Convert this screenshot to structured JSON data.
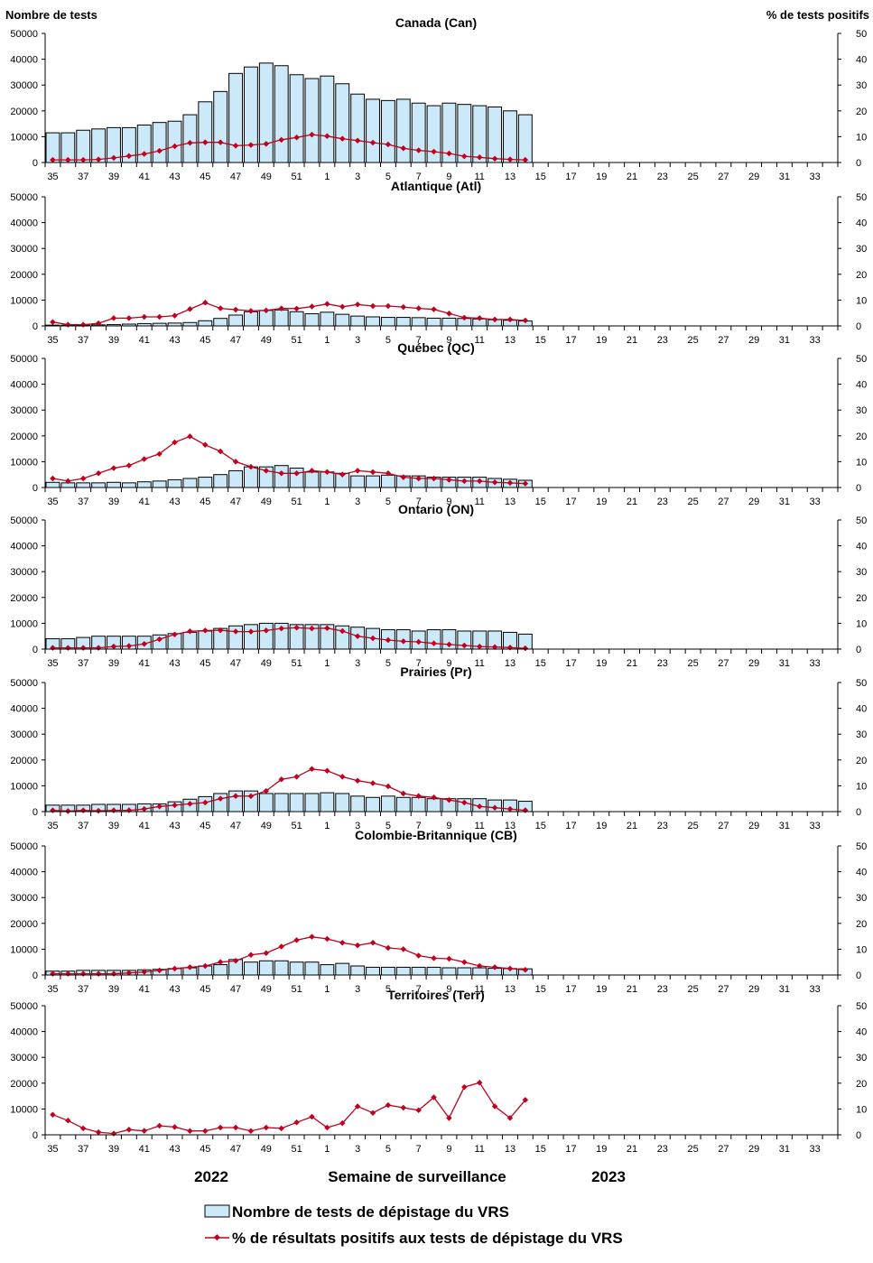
{
  "axis_titles": {
    "left": "Nombre de tests",
    "right": "% de tests positifs"
  },
  "footer": {
    "year_left": "2022",
    "xlabel": "Semaine de surveillance",
    "year_right": "2023"
  },
  "legend": {
    "bars": "Nombre de tests de dépistage du VRS",
    "line": "% de résultats positifs aux tests de dépistage du VRS"
  },
  "colors": {
    "bar_fill": "#cce9f9",
    "bar_stroke": "#000000",
    "line": "#c0001c"
  },
  "x_tick_labels": [
    "35",
    "37",
    "39",
    "41",
    "43",
    "45",
    "47",
    "49",
    "51",
    "1",
    "3",
    "5",
    "7",
    "9",
    "11",
    "13",
    "15",
    "17",
    "19",
    "21",
    "23",
    "25",
    "27",
    "29",
    "31",
    "33"
  ],
  "chart_data": [
    {
      "type": "bar",
      "title": "Canada (Can)",
      "weeks": [
        35,
        36,
        37,
        38,
        39,
        40,
        41,
        42,
        43,
        44,
        45,
        46,
        47,
        48,
        49,
        50,
        51,
        52,
        1,
        2,
        3,
        4,
        5,
        6,
        7,
        8,
        9,
        10,
        11,
        12,
        13,
        14
      ],
      "series": [
        {
          "name": "Nombre de tests de dépistage du VRS",
          "axis": "left",
          "values": [
            11500,
            11500,
            12500,
            13000,
            13500,
            13500,
            14500,
            15500,
            16000,
            18500,
            23500,
            27500,
            34500,
            37000,
            38500,
            37500,
            34000,
            32500,
            33500,
            30500,
            26500,
            24500,
            24000,
            24500,
            23000,
            22000,
            23000,
            22500,
            22000,
            21500,
            20000,
            18500
          ]
        },
        {
          "name": "% de résultats positifs aux tests de dépistage du VRS",
          "axis": "right",
          "values": [
            1.0,
            1.0,
            1.0,
            1.2,
            1.8,
            2.5,
            3.3,
            4.5,
            6.3,
            7.6,
            7.8,
            7.8,
            6.5,
            6.8,
            7.2,
            8.8,
            9.7,
            10.8,
            10.2,
            9.2,
            8.5,
            7.7,
            7.0,
            5.5,
            4.7,
            4.2,
            3.5,
            2.4,
            2.0,
            1.5,
            1.2,
            1.0
          ]
        }
      ],
      "ylim_left": [
        0,
        50000
      ],
      "ylim_right": [
        0,
        50
      ]
    },
    {
      "type": "bar",
      "title": "Atlantique (Atl)",
      "weeks": [
        35,
        36,
        37,
        38,
        39,
        40,
        41,
        42,
        43,
        44,
        45,
        46,
        47,
        48,
        49,
        50,
        51,
        52,
        1,
        2,
        3,
        4,
        5,
        6,
        7,
        8,
        9,
        10,
        11,
        12,
        13,
        14
      ],
      "series": [
        {
          "name": "Nombre de tests de dépistage du VRS",
          "axis": "left",
          "values": [
            300,
            300,
            300,
            400,
            500,
            700,
            900,
            1000,
            1100,
            1300,
            2000,
            2900,
            4200,
            5500,
            6000,
            6200,
            5500,
            4700,
            5300,
            4500,
            3800,
            3500,
            3300,
            3300,
            3200,
            3000,
            3000,
            2900,
            2700,
            2400,
            2200,
            1900
          ]
        },
        {
          "name": "% de résultats positifs aux tests de dépistage du VRS",
          "axis": "right",
          "values": [
            1.5,
            0.5,
            0.5,
            1.0,
            3.0,
            3.0,
            3.5,
            3.5,
            4.0,
            6.5,
            9.0,
            6.8,
            6.3,
            5.8,
            6.0,
            6.8,
            6.7,
            7.5,
            8.5,
            7.4,
            8.3,
            7.7,
            7.7,
            7.3,
            6.8,
            6.4,
            4.8,
            3.2,
            3.0,
            2.5,
            2.5,
            2.1
          ]
        }
      ],
      "ylim_left": [
        0,
        50000
      ],
      "ylim_right": [
        0,
        50
      ]
    },
    {
      "type": "bar",
      "title": "Québec (QC)",
      "weeks": [
        35,
        36,
        37,
        38,
        39,
        40,
        41,
        42,
        43,
        44,
        45,
        46,
        47,
        48,
        49,
        50,
        51,
        52,
        1,
        2,
        3,
        4,
        5,
        6,
        7,
        8,
        9,
        10,
        11,
        12,
        13,
        14
      ],
      "series": [
        {
          "name": "Nombre de tests de dépistage du VRS",
          "axis": "left",
          "values": [
            2000,
            1800,
            1800,
            1800,
            2000,
            1800,
            2200,
            2500,
            3000,
            3500,
            4000,
            5000,
            6500,
            8000,
            8000,
            8500,
            7500,
            6000,
            6000,
            5500,
            4500,
            4500,
            4800,
            4500,
            4500,
            4000,
            4000,
            4000,
            4000,
            3500,
            3200,
            2800
          ]
        },
        {
          "name": "% de résultats positifs aux tests de dépistage du VRS",
          "axis": "right",
          "values": [
            3.5,
            2.5,
            3.5,
            5.5,
            7.5,
            8.5,
            11.0,
            13.0,
            17.5,
            19.8,
            16.5,
            14.0,
            10.0,
            8.0,
            6.5,
            5.5,
            5.5,
            6.5,
            6.0,
            5.0,
            6.5,
            6.0,
            5.5,
            4.0,
            3.5,
            3.5,
            3.0,
            2.5,
            2.5,
            2.0,
            1.8,
            1.5
          ]
        }
      ],
      "ylim_left": [
        0,
        50000
      ],
      "ylim_right": [
        0,
        50
      ]
    },
    {
      "type": "bar",
      "title": "Ontario (ON)",
      "weeks": [
        35,
        36,
        37,
        38,
        39,
        40,
        41,
        42,
        43,
        44,
        45,
        46,
        47,
        48,
        49,
        50,
        51,
        52,
        1,
        2,
        3,
        4,
        5,
        6,
        7,
        8,
        9,
        10,
        11,
        12,
        13,
        14
      ],
      "series": [
        {
          "name": "Nombre de tests de dépistage du VRS",
          "axis": "left",
          "values": [
            4000,
            4000,
            4500,
            5000,
            5000,
            5000,
            5000,
            5500,
            6000,
            6500,
            7000,
            8000,
            9000,
            9500,
            10000,
            10000,
            9500,
            9500,
            9500,
            9000,
            8500,
            8000,
            7500,
            7500,
            7000,
            7500,
            7500,
            7000,
            7000,
            7000,
            6500,
            5800
          ]
        },
        {
          "name": "% de résultats positifs aux tests de dépistage du VRS",
          "axis": "right",
          "values": [
            0.5,
            0.5,
            0.5,
            0.5,
            1.0,
            1.2,
            2.0,
            3.8,
            5.7,
            6.9,
            7.2,
            7.3,
            6.8,
            6.8,
            7.2,
            8.0,
            8.3,
            8.0,
            8.1,
            7.0,
            5.0,
            4.2,
            3.5,
            3.0,
            2.8,
            2.2,
            1.8,
            1.4,
            1.0,
            0.8,
            0.6,
            0.3
          ]
        }
      ],
      "ylim_left": [
        0,
        50000
      ],
      "ylim_right": [
        0,
        50
      ]
    },
    {
      "type": "bar",
      "title": "Prairies (Pr)",
      "weeks": [
        35,
        36,
        37,
        38,
        39,
        40,
        41,
        42,
        43,
        44,
        45,
        46,
        47,
        48,
        49,
        50,
        51,
        52,
        1,
        2,
        3,
        4,
        5,
        6,
        7,
        8,
        9,
        10,
        11,
        12,
        13,
        14
      ],
      "series": [
        {
          "name": "Nombre de tests de dépistage du VRS",
          "axis": "left",
          "values": [
            2500,
            2500,
            2500,
            2800,
            2800,
            2800,
            3000,
            3000,
            3800,
            4800,
            5800,
            7000,
            8000,
            8000,
            7000,
            7000,
            7000,
            7000,
            7300,
            7000,
            6000,
            5500,
            6000,
            5500,
            5500,
            5000,
            5000,
            5000,
            5000,
            4500,
            4500,
            4000
          ]
        },
        {
          "name": "% de résultats positifs aux tests de dépistage du VRS",
          "axis": "right",
          "values": [
            0.5,
            0.2,
            0.5,
            0.3,
            0.5,
            0.5,
            1.0,
            2.0,
            2.5,
            3.0,
            3.5,
            5.0,
            6.0,
            6.0,
            8.0,
            12.5,
            13.5,
            16.5,
            15.8,
            13.5,
            12.0,
            11.0,
            9.8,
            7.0,
            6.0,
            5.5,
            4.5,
            3.5,
            2.0,
            1.5,
            1.0,
            0.5
          ]
        }
      ],
      "ylim_left": [
        0,
        50000
      ],
      "ylim_right": [
        0,
        50
      ]
    },
    {
      "type": "bar",
      "title": "Colombie-Britannique (CB)",
      "weeks": [
        35,
        36,
        37,
        38,
        39,
        40,
        41,
        42,
        43,
        44,
        45,
        46,
        47,
        48,
        49,
        50,
        51,
        52,
        1,
        2,
        3,
        4,
        5,
        6,
        7,
        8,
        9,
        10,
        11,
        12,
        13,
        14
      ],
      "series": [
        {
          "name": "Nombre de tests de dépistage du VRS",
          "axis": "left",
          "values": [
            1500,
            1500,
            1800,
            1800,
            1800,
            1800,
            2000,
            2200,
            2500,
            2800,
            3500,
            4000,
            6000,
            5000,
            5500,
            5500,
            5000,
            5000,
            4000,
            4500,
            3500,
            3000,
            3000,
            3000,
            3000,
            3000,
            2800,
            2800,
            2800,
            2600,
            2500,
            2400
          ]
        },
        {
          "name": "% de résultats positifs aux tests de dépistage du VRS",
          "axis": "right",
          "values": [
            0.5,
            0.5,
            0.5,
            0.5,
            0.5,
            0.8,
            1.2,
            1.8,
            2.5,
            3.0,
            3.5,
            5.0,
            5.5,
            7.8,
            8.5,
            11.0,
            13.5,
            14.8,
            14.0,
            12.5,
            11.5,
            12.5,
            10.5,
            10.0,
            7.5,
            6.5,
            6.3,
            5.0,
            3.5,
            3.0,
            2.5,
            2.0
          ]
        }
      ],
      "ylim_left": [
        0,
        50000
      ],
      "ylim_right": [
        0,
        50
      ]
    },
    {
      "type": "line",
      "title": "Territoires (Terr)",
      "weeks": [
        35,
        36,
        37,
        38,
        39,
        40,
        41,
        42,
        43,
        44,
        45,
        46,
        47,
        48,
        49,
        50,
        51,
        52,
        1,
        2,
        3,
        4,
        5,
        6,
        7,
        8,
        9,
        10,
        11,
        12,
        13,
        14
      ],
      "series": [
        {
          "name": "% de résultats positifs aux tests de dépistage du VRS",
          "axis": "right",
          "values": [
            7.8,
            5.5,
            2.5,
            1.0,
            0.5,
            2.0,
            1.5,
            3.5,
            3.0,
            1.5,
            1.5,
            2.8,
            2.8,
            1.5,
            2.8,
            2.5,
            4.8,
            7.0,
            2.8,
            4.5,
            11.0,
            8.5,
            11.5,
            10.5,
            9.5,
            14.5,
            6.5,
            18.5,
            20.2,
            11.0,
            6.5,
            13.5
          ]
        }
      ],
      "ylim_left": [
        0,
        50000
      ],
      "ylim_right": [
        0,
        50
      ]
    }
  ]
}
